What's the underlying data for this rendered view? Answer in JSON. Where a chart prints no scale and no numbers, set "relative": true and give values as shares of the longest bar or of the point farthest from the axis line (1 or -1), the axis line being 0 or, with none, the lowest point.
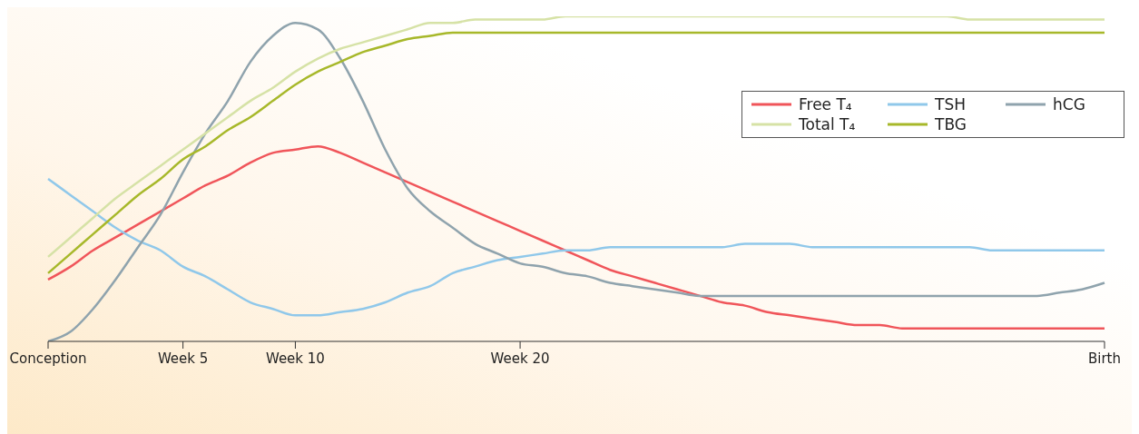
{
  "chart_data": {
    "type": "line",
    "relative": true,
    "legend": "top right",
    "marker": "none",
    "line_style": "solid",
    "categories": [
      "Conception",
      null,
      null,
      null,
      null,
      null,
      "Week 5",
      null,
      null,
      null,
      null,
      "Week 10",
      null,
      null,
      null,
      null,
      null,
      null,
      null,
      null,
      null,
      "Week 20",
      null,
      null,
      null,
      null,
      null,
      null,
      null,
      null,
      null,
      null,
      null,
      null,
      null,
      null,
      null,
      null,
      null,
      null,
      null,
      null,
      null,
      null,
      null,
      null,
      null,
      "Birth"
    ],
    "series": [
      {
        "name": "Free T₄",
        "color": "#f0555a",
        "values": [
          0.19,
          0.23,
          0.28,
          0.32,
          0.36,
          0.4,
          0.44,
          0.48,
          0.51,
          0.55,
          0.58,
          0.59,
          0.6,
          0.58,
          0.55,
          0.52,
          0.49,
          0.46,
          0.43,
          0.4,
          0.37,
          0.34,
          0.31,
          0.28,
          0.25,
          0.22,
          0.2,
          0.18,
          0.16,
          0.14,
          0.12,
          0.11,
          0.09,
          0.08,
          0.07,
          0.06,
          0.05,
          0.05,
          0.04,
          0.04,
          0.04,
          0.04,
          0.04,
          0.04,
          0.04,
          0.04,
          0.04,
          0.04
        ]
      },
      {
        "name": "TSH",
        "color": "#90c8ea",
        "values": [
          0.5,
          0.45,
          0.4,
          0.35,
          0.31,
          0.28,
          0.23,
          0.2,
          0.16,
          0.12,
          0.1,
          0.08,
          0.08,
          0.09,
          0.1,
          0.12,
          0.15,
          0.17,
          0.21,
          0.23,
          0.25,
          0.26,
          0.27,
          0.28,
          0.28,
          0.29,
          0.29,
          0.29,
          0.29,
          0.29,
          0.29,
          0.3,
          0.3,
          0.3,
          0.29,
          0.29,
          0.29,
          0.29,
          0.29,
          0.29,
          0.29,
          0.29,
          0.28,
          0.28,
          0.28,
          0.28,
          0.28,
          0.28
        ]
      },
      {
        "name": "hCG",
        "color": "#8fa3ad",
        "values": [
          0,
          0.03,
          0.1,
          0.19,
          0.29,
          0.39,
          0.52,
          0.64,
          0.74,
          0.86,
          0.94,
          0.98,
          0.96,
          0.87,
          0.74,
          0.59,
          0.47,
          0.4,
          0.35,
          0.3,
          0.27,
          0.24,
          0.23,
          0.21,
          0.2,
          0.18,
          0.17,
          0.16,
          0.15,
          0.14,
          0.14,
          0.14,
          0.14,
          0.14,
          0.14,
          0.14,
          0.14,
          0.14,
          0.14,
          0.14,
          0.14,
          0.14,
          0.14,
          0.14,
          0.14,
          0.15,
          0.16,
          0.18
        ]
      },
      {
        "name": "Total T₄",
        "color": "#d6e2a6",
        "values": [
          0.26,
          0.32,
          0.38,
          0.44,
          0.49,
          0.54,
          0.59,
          0.64,
          0.69,
          0.74,
          0.78,
          0.83,
          0.87,
          0.9,
          0.92,
          0.94,
          0.96,
          0.98,
          0.98,
          0.99,
          0.99,
          0.99,
          0.99,
          1.0,
          1.0,
          1.0,
          1.0,
          1.0,
          1.0,
          1.0,
          1.0,
          1.0,
          1.0,
          1.0,
          1.0,
          1.0,
          1.0,
          1.0,
          1.0,
          1.0,
          1.0,
          0.99,
          0.99,
          0.99,
          0.99,
          0.99,
          0.99,
          0.99
        ]
      },
      {
        "name": "TBG",
        "color": "#a7b82a",
        "values": [
          0.21,
          0.27,
          0.33,
          0.39,
          0.45,
          0.5,
          0.56,
          0.6,
          0.65,
          0.69,
          0.74,
          0.79,
          0.83,
          0.86,
          0.89,
          0.91,
          0.93,
          0.94,
          0.95,
          0.95,
          0.95,
          0.95,
          0.95,
          0.95,
          0.95,
          0.95,
          0.95,
          0.95,
          0.95,
          0.95,
          0.95,
          0.95,
          0.95,
          0.95,
          0.95,
          0.95,
          0.95,
          0.95,
          0.95,
          0.95,
          0.95,
          0.95,
          0.95,
          0.95,
          0.95,
          0.95,
          0.95,
          0.95
        ]
      }
    ]
  }
}
